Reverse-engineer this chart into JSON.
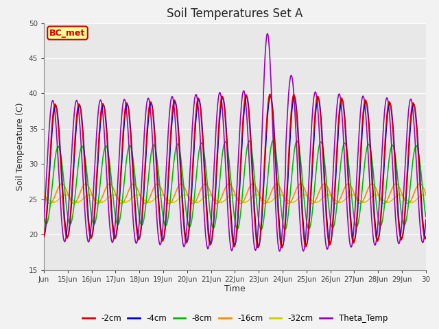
{
  "title": "Soil Temperatures Set A",
  "xlabel": "Time",
  "ylabel": "Soil Temperature (C)",
  "ylim": [
    15,
    50
  ],
  "xlim_start": 0,
  "xlim_end": 16,
  "annotation_text": "BC_met",
  "annotation_bg": "#ffff99",
  "annotation_border": "#cc0000",
  "annotation_text_color": "#cc0000",
  "fig_bg": "#f2f2f2",
  "plot_bg": "#e8e8e8",
  "series": {
    "-2cm": {
      "color": "#dd0000",
      "lw": 1.2
    },
    "-4cm": {
      "color": "#0000cc",
      "lw": 1.2
    },
    "-8cm": {
      "color": "#00bb00",
      "lw": 1.2
    },
    "-16cm": {
      "color": "#ff8800",
      "lw": 1.2
    },
    "-32cm": {
      "color": "#cccc00",
      "lw": 1.2
    },
    "Theta_Temp": {
      "color": "#9900bb",
      "lw": 1.2
    }
  },
  "xtick_labels": [
    "Jun",
    "15Jun",
    "16Jun",
    "17Jun",
    "18Jun",
    "19Jun",
    "20Jun",
    "21Jun",
    "22Jun",
    "23Jun",
    "24Jun",
    "25Jun",
    "26Jun",
    "27Jun",
    "28Jun",
    "29Jun",
    "30"
  ],
  "xtick_positions": [
    0,
    1,
    2,
    3,
    4,
    5,
    6,
    7,
    8,
    9,
    10,
    11,
    12,
    13,
    14,
    15,
    16
  ],
  "ytick_positions": [
    15,
    20,
    25,
    30,
    35,
    40,
    45,
    50
  ],
  "grid_color": "#ffffff",
  "title_fontsize": 12,
  "axis_label_fontsize": 9,
  "tick_fontsize": 7.5
}
